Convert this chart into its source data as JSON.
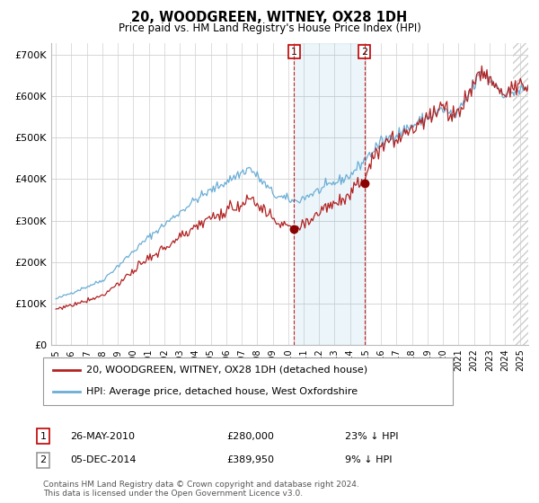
{
  "title": "20, WOODGREEN, WITNEY, OX28 1DH",
  "subtitle": "Price paid vs. HM Land Registry's House Price Index (HPI)",
  "ylabel_ticks": [
    "£0",
    "£100K",
    "£200K",
    "£300K",
    "£400K",
    "£500K",
    "£600K",
    "£700K"
  ],
  "ytick_values": [
    0,
    100000,
    200000,
    300000,
    400000,
    500000,
    600000,
    700000
  ],
  "ylim": [
    0,
    730000
  ],
  "xlim_start": 1994.7,
  "xlim_end": 2025.5,
  "sale1_x": 2010.38,
  "sale1_y": 280000,
  "sale2_x": 2014.92,
  "sale2_y": 389950,
  "legend_line1": "20, WOODGREEN, WITNEY, OX28 1DH (detached house)",
  "legend_line2": "HPI: Average price, detached house, West Oxfordshire",
  "annotation1_label": "1",
  "annotation1_date": "26-MAY-2010",
  "annotation1_price": "£280,000",
  "annotation1_hpi": "23% ↓ HPI",
  "annotation2_label": "2",
  "annotation2_date": "05-DEC-2014",
  "annotation2_price": "£389,950",
  "annotation2_hpi": "9% ↓ HPI",
  "footer": "Contains HM Land Registry data © Crown copyright and database right 2024.\nThis data is licensed under the Open Government Licence v3.0.",
  "hpi_color": "#6aaed6",
  "price_color": "#b22222",
  "sale_dot_color": "#8b0000",
  "vline_color": "#c00000",
  "background_color": "#ffffff",
  "grid_color": "#d0d0d0",
  "hatch_start": 2024.5
}
